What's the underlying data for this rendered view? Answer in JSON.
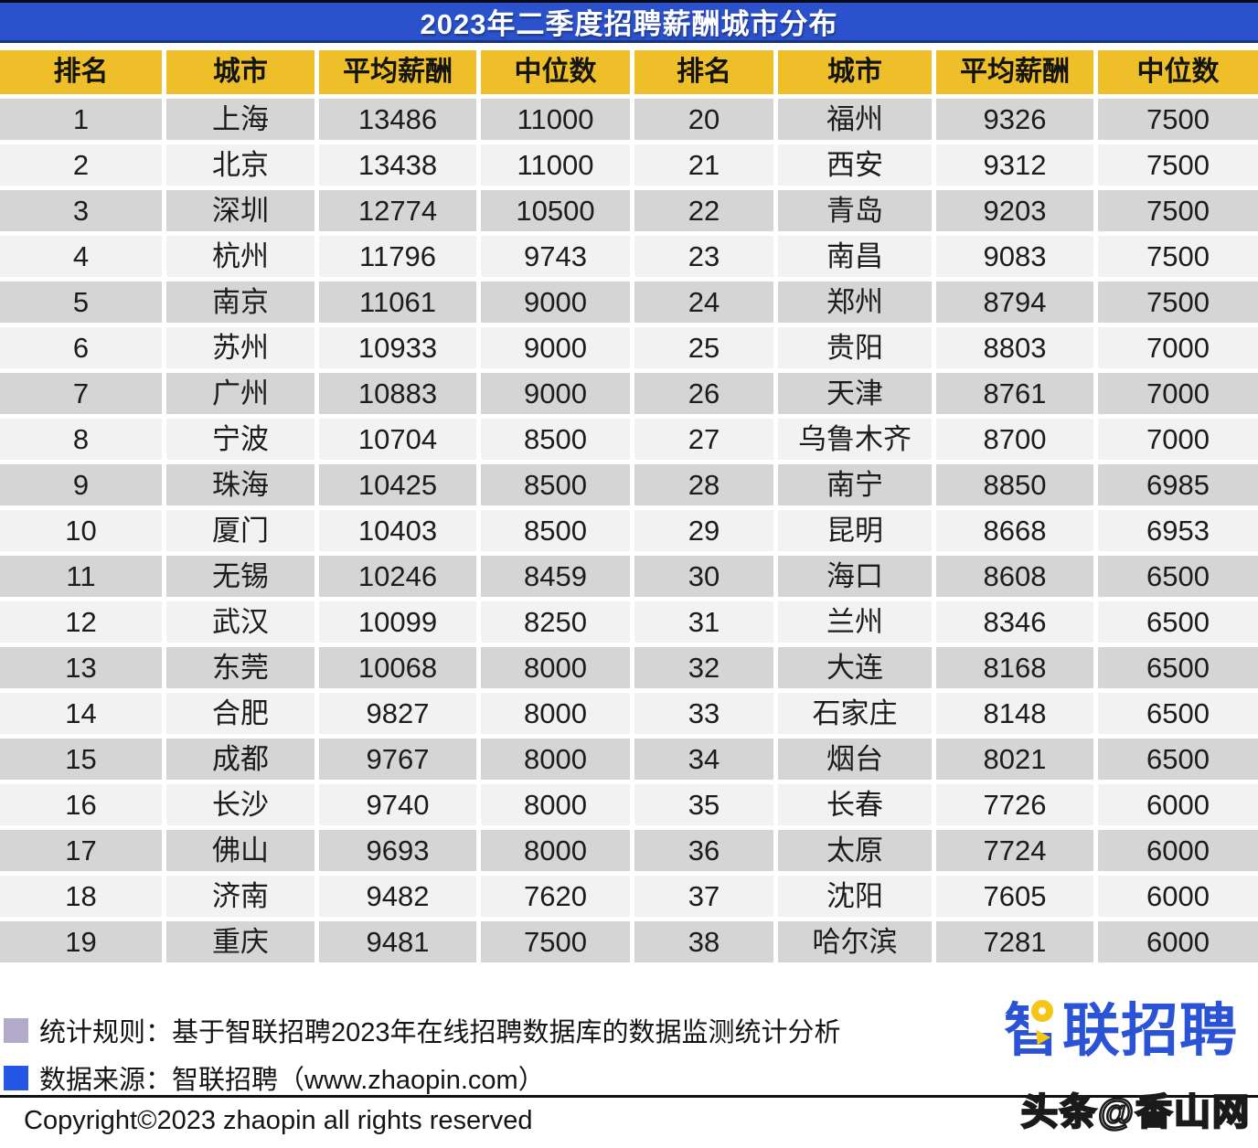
{
  "title": "2023年二季度招聘薪酬城市分布",
  "columns": [
    "排名",
    "城市",
    "平均薪酬",
    "中位数"
  ],
  "rows_left": [
    {
      "rank": "1",
      "city": "上海",
      "avg": "13486",
      "median": "11000"
    },
    {
      "rank": "2",
      "city": "北京",
      "avg": "13438",
      "median": "11000"
    },
    {
      "rank": "3",
      "city": "深圳",
      "avg": "12774",
      "median": "10500"
    },
    {
      "rank": "4",
      "city": "杭州",
      "avg": "11796",
      "median": "9743"
    },
    {
      "rank": "5",
      "city": "南京",
      "avg": "11061",
      "median": "9000"
    },
    {
      "rank": "6",
      "city": "苏州",
      "avg": "10933",
      "median": "9000"
    },
    {
      "rank": "7",
      "city": "广州",
      "avg": "10883",
      "median": "9000"
    },
    {
      "rank": "8",
      "city": "宁波",
      "avg": "10704",
      "median": "8500"
    },
    {
      "rank": "9",
      "city": "珠海",
      "avg": "10425",
      "median": "8500"
    },
    {
      "rank": "10",
      "city": "厦门",
      "avg": "10403",
      "median": "8500"
    },
    {
      "rank": "11",
      "city": "无锡",
      "avg": "10246",
      "median": "8459"
    },
    {
      "rank": "12",
      "city": "武汉",
      "avg": "10099",
      "median": "8250"
    },
    {
      "rank": "13",
      "city": "东莞",
      "avg": "10068",
      "median": "8000"
    },
    {
      "rank": "14",
      "city": "合肥",
      "avg": "9827",
      "median": "8000"
    },
    {
      "rank": "15",
      "city": "成都",
      "avg": "9767",
      "median": "8000"
    },
    {
      "rank": "16",
      "city": "长沙",
      "avg": "9740",
      "median": "8000"
    },
    {
      "rank": "17",
      "city": "佛山",
      "avg": "9693",
      "median": "8000"
    },
    {
      "rank": "18",
      "city": "济南",
      "avg": "9482",
      "median": "7620"
    },
    {
      "rank": "19",
      "city": "重庆",
      "avg": "9481",
      "median": "7500"
    }
  ],
  "rows_right": [
    {
      "rank": "20",
      "city": "福州",
      "avg": "9326",
      "median": "7500"
    },
    {
      "rank": "21",
      "city": "西安",
      "avg": "9312",
      "median": "7500"
    },
    {
      "rank": "22",
      "city": "青岛",
      "avg": "9203",
      "median": "7500"
    },
    {
      "rank": "23",
      "city": "南昌",
      "avg": "9083",
      "median": "7500"
    },
    {
      "rank": "24",
      "city": "郑州",
      "avg": "8794",
      "median": "7500"
    },
    {
      "rank": "25",
      "city": "贵阳",
      "avg": "8803",
      "median": "7000"
    },
    {
      "rank": "26",
      "city": "天津",
      "avg": "8761",
      "median": "7000"
    },
    {
      "rank": "27",
      "city": "乌鲁木齐",
      "avg": "8700",
      "median": "7000"
    },
    {
      "rank": "28",
      "city": "南宁",
      "avg": "8850",
      "median": "6985"
    },
    {
      "rank": "29",
      "city": "昆明",
      "avg": "8668",
      "median": "6953"
    },
    {
      "rank": "30",
      "city": "海口",
      "avg": "8608",
      "median": "6500"
    },
    {
      "rank": "31",
      "city": "兰州",
      "avg": "8346",
      "median": "6500"
    },
    {
      "rank": "32",
      "city": "大连",
      "avg": "8168",
      "median": "6500"
    },
    {
      "rank": "33",
      "city": "石家庄",
      "avg": "8148",
      "median": "6500"
    },
    {
      "rank": "34",
      "city": "烟台",
      "avg": "8021",
      "median": "6500"
    },
    {
      "rank": "35",
      "city": "长春",
      "avg": "7726",
      "median": "6000"
    },
    {
      "rank": "36",
      "city": "太原",
      "avg": "7724",
      "median": "6000"
    },
    {
      "rank": "37",
      "city": "沈阳",
      "avg": "7605",
      "median": "6000"
    },
    {
      "rank": "38",
      "city": "哈尔滨",
      "avg": "7281",
      "median": "6000"
    }
  ],
  "footer": {
    "rule": "统计规则：基于智联招聘2023年在线招聘数据库的数据监测统计分析",
    "source": "数据来源：智联招聘（www.zhaopin.com）",
    "copyright": "Copyright©2023 zhaopin all rights reserved",
    "logo_text": "智联招聘",
    "watermark": "头条@香山网"
  },
  "colors": {
    "title_bg": "#2B52CC",
    "header_bg": "#EFBF2A",
    "row_grey": "#D5D5D5",
    "row_light": "#F2F2F2",
    "bullet_purple": "#B3A9C9",
    "bullet_blue": "#2457E6",
    "logo_blue": "#2B53D6",
    "logo_yellow": "#F5C518"
  },
  "chart_data": {
    "type": "table",
    "title": "2023年二季度招聘薪酬城市分布",
    "columns": [
      "排名",
      "城市",
      "平均薪酬",
      "中位数"
    ],
    "rows": [
      [
        1,
        "上海",
        13486,
        11000
      ],
      [
        2,
        "北京",
        13438,
        11000
      ],
      [
        3,
        "深圳",
        12774,
        10500
      ],
      [
        4,
        "杭州",
        11796,
        9743
      ],
      [
        5,
        "南京",
        11061,
        9000
      ],
      [
        6,
        "苏州",
        10933,
        9000
      ],
      [
        7,
        "广州",
        10883,
        9000
      ],
      [
        8,
        "宁波",
        10704,
        8500
      ],
      [
        9,
        "珠海",
        10425,
        8500
      ],
      [
        10,
        "厦门",
        10403,
        8500
      ],
      [
        11,
        "无锡",
        10246,
        8459
      ],
      [
        12,
        "武汉",
        10099,
        8250
      ],
      [
        13,
        "东莞",
        10068,
        8000
      ],
      [
        14,
        "合肥",
        9827,
        8000
      ],
      [
        15,
        "成都",
        9767,
        8000
      ],
      [
        16,
        "长沙",
        9740,
        8000
      ],
      [
        17,
        "佛山",
        9693,
        8000
      ],
      [
        18,
        "济南",
        9482,
        7620
      ],
      [
        19,
        "重庆",
        9481,
        7500
      ],
      [
        20,
        "福州",
        9326,
        7500
      ],
      [
        21,
        "西安",
        9312,
        7500
      ],
      [
        22,
        "青岛",
        9203,
        7500
      ],
      [
        23,
        "南昌",
        9083,
        7500
      ],
      [
        24,
        "郑州",
        8794,
        7500
      ],
      [
        25,
        "贵阳",
        8803,
        7000
      ],
      [
        26,
        "天津",
        8761,
        7000
      ],
      [
        27,
        "乌鲁木齐",
        8700,
        7000
      ],
      [
        28,
        "南宁",
        8850,
        6985
      ],
      [
        29,
        "昆明",
        8668,
        6953
      ],
      [
        30,
        "海口",
        8608,
        6500
      ],
      [
        31,
        "兰州",
        8346,
        6500
      ],
      [
        32,
        "大连",
        8168,
        6500
      ],
      [
        33,
        "石家庄",
        8148,
        6500
      ],
      [
        34,
        "烟台",
        8021,
        6500
      ],
      [
        35,
        "长春",
        7726,
        6000
      ],
      [
        36,
        "太原",
        7724,
        6000
      ],
      [
        37,
        "沈阳",
        7605,
        6000
      ],
      [
        38,
        "哈尔滨",
        7281,
        6000
      ]
    ],
    "layout": "two side-by-side halves: ranks 1-19 left, ranks 20-38 right"
  }
}
